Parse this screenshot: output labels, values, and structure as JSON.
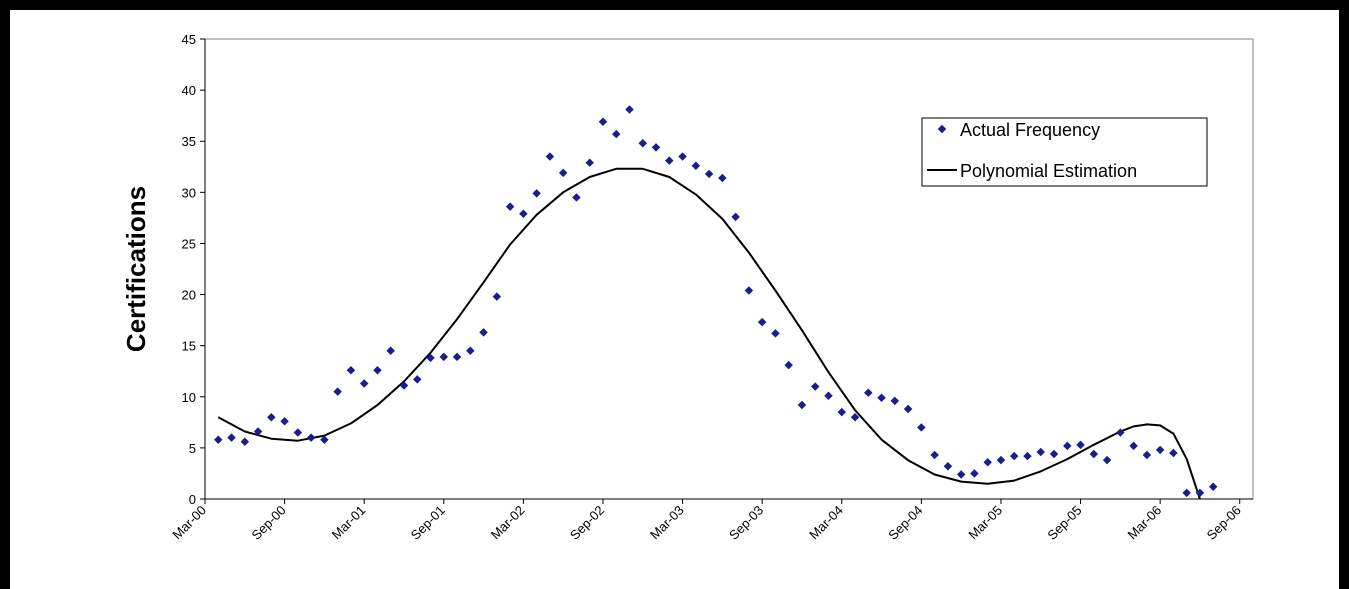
{
  "chart_data": {
    "type": "scatter",
    "title": "",
    "xlabel": "",
    "ylabel": "Certifications",
    "ylim": [
      0,
      45
    ],
    "yticks": [
      0,
      5,
      10,
      15,
      20,
      25,
      30,
      35,
      40,
      45
    ],
    "xlim": [
      "2000-03",
      "2006-10"
    ],
    "xticks": [
      "Mar-00",
      "Sep-00",
      "Mar-01",
      "Sep-01",
      "Mar-02",
      "Sep-02",
      "Mar-03",
      "Sep-03",
      "Mar-04",
      "Sep-04",
      "Mar-05",
      "Sep-05",
      "Mar-06",
      "Sep-06"
    ],
    "grid": false,
    "legend": {
      "placement": "top-right",
      "entries": [
        "Actual Frequency",
        "Polynomial Estimation"
      ]
    },
    "colors": {
      "points": "#1c1c8c",
      "line": "#000000",
      "background": "#ffffff",
      "border": "#000000"
    },
    "series": [
      {
        "name": "Actual Frequency",
        "kind": "scatter",
        "points": [
          [
            "2000-04",
            5.8
          ],
          [
            "2000-05",
            6.0
          ],
          [
            "2000-06",
            5.6
          ],
          [
            "2000-07",
            6.6
          ],
          [
            "2000-08",
            8.0
          ],
          [
            "2000-09",
            7.6
          ],
          [
            "2000-10",
            6.5
          ],
          [
            "2000-11",
            6.0
          ],
          [
            "2000-12",
            5.8
          ],
          [
            "2001-01",
            10.5
          ],
          [
            "2001-02",
            12.6
          ],
          [
            "2001-03",
            11.3
          ],
          [
            "2001-04",
            12.6
          ],
          [
            "2001-05",
            14.5
          ],
          [
            "2001-06",
            11.1
          ],
          [
            "2001-07",
            11.7
          ],
          [
            "2001-08",
            13.8
          ],
          [
            "2001-09",
            13.9
          ],
          [
            "2001-10",
            13.9
          ],
          [
            "2001-11",
            14.5
          ],
          [
            "2001-12",
            16.3
          ],
          [
            "2002-01",
            19.8
          ],
          [
            "2002-02",
            28.6
          ],
          [
            "2002-03",
            27.9
          ],
          [
            "2002-04",
            29.9
          ],
          [
            "2002-05",
            33.5
          ],
          [
            "2002-06",
            31.9
          ],
          [
            "2002-07",
            29.5
          ],
          [
            "2002-08",
            32.9
          ],
          [
            "2002-09",
            36.9
          ],
          [
            "2002-10",
            35.7
          ],
          [
            "2002-11",
            38.1
          ],
          [
            "2002-12",
            34.8
          ],
          [
            "2003-01",
            34.4
          ],
          [
            "2003-02",
            33.1
          ],
          [
            "2003-03",
            33.5
          ],
          [
            "2003-04",
            32.6
          ],
          [
            "2003-05",
            31.8
          ],
          [
            "2003-06",
            31.4
          ],
          [
            "2003-07",
            27.6
          ],
          [
            "2003-08",
            20.4
          ],
          [
            "2003-09",
            17.3
          ],
          [
            "2003-10",
            16.2
          ],
          [
            "2003-11",
            13.1
          ],
          [
            "2003-12",
            9.2
          ],
          [
            "2004-01",
            11.0
          ],
          [
            "2004-02",
            10.1
          ],
          [
            "2004-03",
            8.5
          ],
          [
            "2004-04",
            8.0
          ],
          [
            "2004-05",
            10.4
          ],
          [
            "2004-06",
            9.9
          ],
          [
            "2004-07",
            9.6
          ],
          [
            "2004-08",
            8.8
          ],
          [
            "2004-09",
            7.0
          ],
          [
            "2004-10",
            4.3
          ],
          [
            "2004-11",
            3.2
          ],
          [
            "2004-12",
            2.4
          ],
          [
            "2005-01",
            2.5
          ],
          [
            "2005-02",
            3.6
          ],
          [
            "2005-03",
            3.8
          ],
          [
            "2005-04",
            4.2
          ],
          [
            "2005-05",
            4.2
          ],
          [
            "2005-06",
            4.6
          ],
          [
            "2005-07",
            4.4
          ],
          [
            "2005-08",
            5.2
          ],
          [
            "2005-09",
            5.3
          ],
          [
            "2005-10",
            4.4
          ],
          [
            "2005-11",
            3.8
          ],
          [
            "2005-12",
            6.5
          ],
          [
            "2006-01",
            5.2
          ],
          [
            "2006-02",
            4.3
          ],
          [
            "2006-03",
            4.8
          ],
          [
            "2006-04",
            4.5
          ],
          [
            "2006-05",
            0.6
          ],
          [
            "2006-06",
            0.6
          ],
          [
            "2006-07",
            1.2
          ]
        ]
      },
      {
        "name": "Polynomial Estimation",
        "kind": "line",
        "points": [
          [
            "2000-04",
            8.0
          ],
          [
            "2000-06",
            6.6
          ],
          [
            "2000-08",
            5.9
          ],
          [
            "2000-10",
            5.7
          ],
          [
            "2000-12",
            6.2
          ],
          [
            "2001-02",
            7.4
          ],
          [
            "2001-04",
            9.2
          ],
          [
            "2001-06",
            11.5
          ],
          [
            "2001-08",
            14.3
          ],
          [
            "2001-10",
            17.6
          ],
          [
            "2001-12",
            21.2
          ],
          [
            "2002-02",
            24.9
          ],
          [
            "2002-04",
            27.8
          ],
          [
            "2002-06",
            30.0
          ],
          [
            "2002-08",
            31.5
          ],
          [
            "2002-10",
            32.3
          ],
          [
            "2002-12",
            32.3
          ],
          [
            "2003-02",
            31.5
          ],
          [
            "2003-04",
            29.8
          ],
          [
            "2003-06",
            27.4
          ],
          [
            "2003-08",
            24.1
          ],
          [
            "2003-10",
            20.4
          ],
          [
            "2003-12",
            16.5
          ],
          [
            "2004-02",
            12.4
          ],
          [
            "2004-04",
            8.7
          ],
          [
            "2004-06",
            5.8
          ],
          [
            "2004-08",
            3.8
          ],
          [
            "2004-10",
            2.4
          ],
          [
            "2004-12",
            1.7
          ],
          [
            "2005-02",
            1.5
          ],
          [
            "2005-04",
            1.8
          ],
          [
            "2005-06",
            2.7
          ],
          [
            "2005-08",
            3.9
          ],
          [
            "2005-10",
            5.3
          ],
          [
            "2005-12",
            6.6
          ],
          [
            "2006-01",
            7.1
          ],
          [
            "2006-02",
            7.3
          ],
          [
            "2006-03",
            7.2
          ],
          [
            "2006-04",
            6.4
          ],
          [
            "2006-05",
            3.9
          ],
          [
            "2006-06",
            0.0
          ]
        ]
      }
    ]
  }
}
